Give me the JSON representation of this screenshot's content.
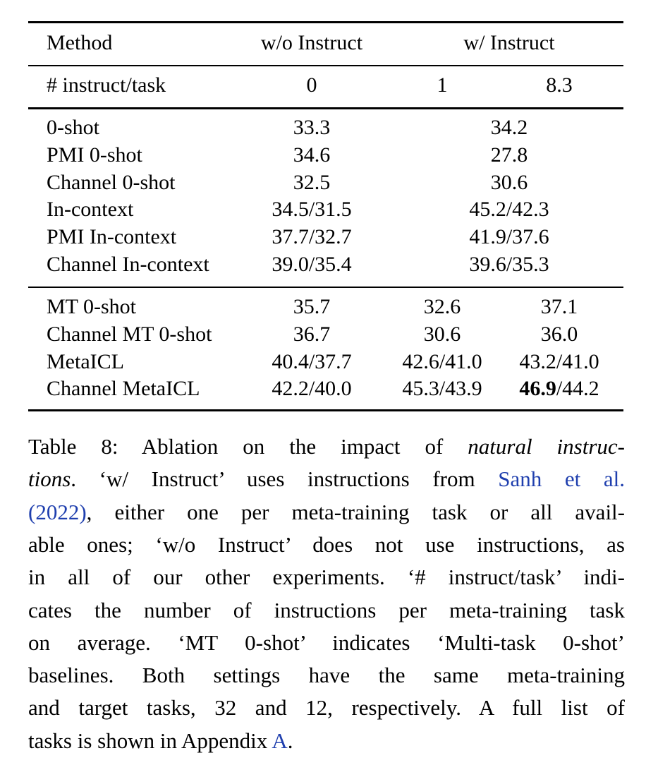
{
  "table": {
    "header": [
      "Method",
      "w/o Instruct",
      "w/ Instruct"
    ],
    "subheader": [
      "# instruct/task",
      "0",
      "1",
      "8.3"
    ],
    "groups": [
      [
        [
          "0-shot",
          "33.3",
          "34.2"
        ],
        [
          "PMI 0-shot",
          "34.6",
          "27.8"
        ],
        [
          "Channel 0-shot",
          "32.5",
          "30.6"
        ],
        [
          "In-context",
          "34.5/31.5",
          "45.2/42.3"
        ],
        [
          "PMI In-context",
          "37.7/32.7",
          "41.9/37.6"
        ],
        [
          "Channel In-context",
          "39.0/35.4",
          "39.6/35.3"
        ]
      ],
      [
        [
          "MT 0-shot",
          "35.7",
          "32.6",
          "37.1"
        ],
        [
          "Channel MT 0-shot",
          "36.7",
          "30.6",
          "36.0"
        ],
        [
          "MetaICL",
          "40.4/37.7",
          "42.6/41.0",
          "43.2/41.0"
        ],
        [
          "Channel MetaICL",
          "42.2/40.0",
          "45.3/43.9",
          {
            "bold": "46.9",
            "rest": "/44.2"
          }
        ]
      ]
    ]
  },
  "caption": {
    "lines": [
      [
        "Table 8: Ablation on the impact of ",
        {
          "text": "natural instruc-",
          "style": "italic"
        }
      ],
      [
        {
          "text": "tions",
          "style": "italic"
        },
        ". ‘w/ Instruct’ uses instructions from ",
        {
          "text": "Sanh et al.",
          "style": "link"
        }
      ],
      [
        {
          "text": "(2022)",
          "style": "link"
        },
        ", either one per meta-training task or all avail-"
      ],
      [
        "able ones; ‘w/o Instruct’ does not use instructions, as"
      ],
      [
        "in all of our other experiments. ‘# instruct/task’ indi-"
      ],
      [
        "cates the number of instructions per meta-training task"
      ],
      [
        "on average. ‘MT 0-shot’ indicates ‘Multi-task 0-shot’"
      ],
      [
        "baselines. Both settings have the same meta-training"
      ],
      [
        "and target tasks, 32 and 12, respectively. A full list of"
      ],
      [
        "tasks is shown in Appendix ",
        {
          "text": "A",
          "style": "link"
        },
        "."
      ]
    ]
  }
}
